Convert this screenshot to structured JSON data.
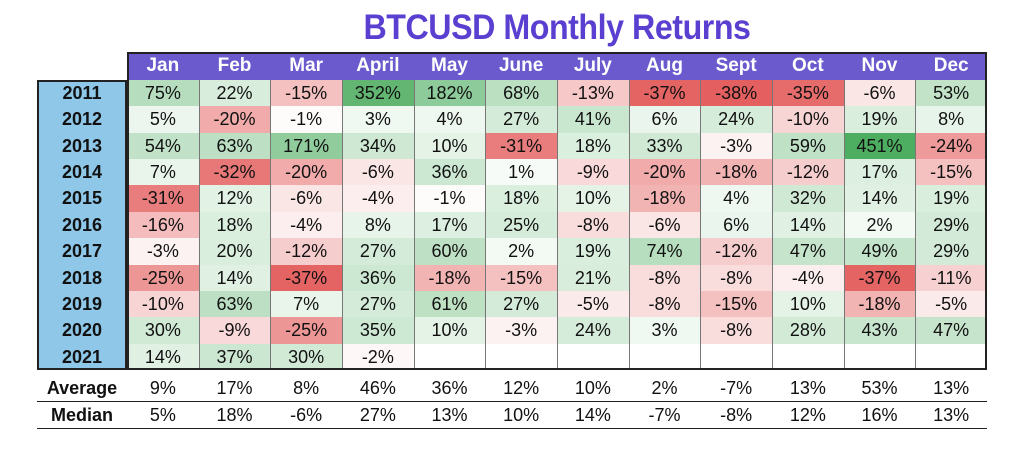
{
  "chart_data": {
    "type": "heatmap",
    "title": "BTCUSD Monthly Returns",
    "columns": [
      "Jan",
      "Feb",
      "Mar",
      "April",
      "May",
      "June",
      "July",
      "Aug",
      "Sept",
      "Oct",
      "Nov",
      "Dec"
    ],
    "rows": [
      "2011",
      "2012",
      "2013",
      "2014",
      "2015",
      "2016",
      "2017",
      "2018",
      "2019",
      "2020",
      "2021"
    ],
    "values": [
      [
        "75%",
        "22%",
        "-15%",
        "352%",
        "182%",
        "68%",
        "-13%",
        "-37%",
        "-38%",
        "-35%",
        "-6%",
        "53%"
      ],
      [
        "5%",
        "-20%",
        "-1%",
        "3%",
        "4%",
        "27%",
        "41%",
        "6%",
        "24%",
        "-10%",
        "19%",
        "8%"
      ],
      [
        "54%",
        "63%",
        "171%",
        "34%",
        "10%",
        "-31%",
        "18%",
        "33%",
        "-3%",
        "59%",
        "451%",
        "-24%"
      ],
      [
        "7%",
        "-32%",
        "-20%",
        "-6%",
        "36%",
        "1%",
        "-9%",
        "-20%",
        "-18%",
        "-12%",
        "17%",
        "-15%"
      ],
      [
        "-31%",
        "12%",
        "-6%",
        "-4%",
        "-1%",
        "18%",
        "10%",
        "-18%",
        "4%",
        "32%",
        "14%",
        "19%"
      ],
      [
        "-16%",
        "18%",
        "-4%",
        "8%",
        "17%",
        "25%",
        "-8%",
        "-6%",
        "6%",
        "14%",
        "2%",
        "29%"
      ],
      [
        "-3%",
        "20%",
        "-12%",
        "27%",
        "60%",
        "2%",
        "19%",
        "74%",
        "-12%",
        "47%",
        "49%",
        "29%"
      ],
      [
        "-25%",
        "14%",
        "-37%",
        "36%",
        "-18%",
        "-15%",
        "21%",
        "-8%",
        "-8%",
        "-4%",
        "-37%",
        "-11%"
      ],
      [
        "-10%",
        "63%",
        "7%",
        "27%",
        "61%",
        "27%",
        "-5%",
        "-8%",
        "-15%",
        "10%",
        "-18%",
        "-5%"
      ],
      [
        "30%",
        "-9%",
        "-25%",
        "35%",
        "10%",
        "-3%",
        "24%",
        "3%",
        "-8%",
        "28%",
        "43%",
        "47%"
      ],
      [
        "14%",
        "37%",
        "30%",
        "-2%",
        "",
        "",
        "",
        "",
        "",
        "",
        "",
        ""
      ]
    ],
    "summary": [
      {
        "label": "Average",
        "values": [
          "9%",
          "17%",
          "8%",
          "46%",
          "36%",
          "12%",
          "10%",
          "2%",
          "-7%",
          "13%",
          "53%",
          "13%"
        ]
      },
      {
        "label": "Median",
        "values": [
          "5%",
          "18%",
          "-6%",
          "27%",
          "13%",
          "10%",
          "14%",
          "-7%",
          "-8%",
          "12%",
          "16%",
          "13%"
        ]
      }
    ],
    "colors": {
      "title": "#5b3fd0",
      "header_bg": "#6a5acd",
      "year_bg": "#8ec7e8",
      "positive": "#2e9e44",
      "negative": "#dc3232"
    }
  }
}
